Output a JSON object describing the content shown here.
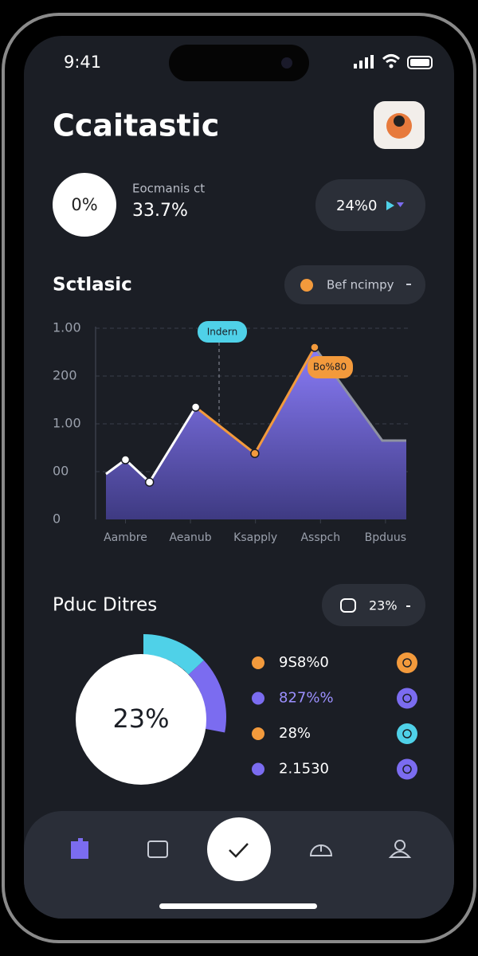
{
  "status_bar": {
    "time": "9:41"
  },
  "header": {
    "title": "Ccaitastic"
  },
  "summary": {
    "badge": "0%",
    "label": "Eocmanis ct",
    "value": "33.7%",
    "pill": "24%0"
  },
  "chart_section": {
    "title": "Sctlasic",
    "dropdown": "Bef ncimpy",
    "chart": {
      "type": "area",
      "x": [
        -0.3,
        0,
        0.37,
        1.08,
        1.99,
        2.91,
        3.95,
        4.32
      ],
      "values": [
        0.95,
        1.25,
        0.78,
        2.35,
        1.38,
        3.6,
        1.65,
        1.65
      ],
      "xlim": [
        -0.3,
        4.32
      ],
      "ylim": [
        0,
        4
      ],
      "yticks": [
        0,
        {
          "value": 1,
          "label": "00"
        },
        {
          "value": 2,
          "label": "1.00"
        },
        {
          "value": 3,
          "label": "200"
        },
        {
          "value": 4,
          "label": "1.00"
        }
      ],
      "xticks": [
        {
          "value": 0,
          "label": "Aambre"
        },
        {
          "value": 1,
          "label": "Aeanub"
        },
        {
          "value": 2,
          "label": "Ksapply"
        },
        {
          "value": 3,
          "label": "Asspch"
        },
        {
          "value": 4,
          "label": "Bpduus"
        }
      ],
      "tooltips": [
        "Indern",
        "Bo%80"
      ],
      "color": "#7b6cf0",
      "grid": true
    }
  },
  "distribution": {
    "title": "Pduc Ditres",
    "dropdown": "23%",
    "donut": {
      "type": "donut",
      "center_label": "23%",
      "values": [
        13,
        15
      ],
      "colors": [
        "#4fd1e8",
        "#7b6cf0"
      ]
    },
    "legend": [
      {
        "label": "9S8%0",
        "color": "#f39a3c"
      },
      {
        "label": "827%%",
        "color": "#7b6cf0"
      },
      {
        "label": "28%",
        "color": "#f39a3c"
      },
      {
        "label": "2.1530",
        "color": "#7b6cf0"
      }
    ],
    "legend_icons": [
      "#f39a3c",
      "#7b6cf0",
      "#4fd1e8",
      "#7b6cf0"
    ]
  }
}
